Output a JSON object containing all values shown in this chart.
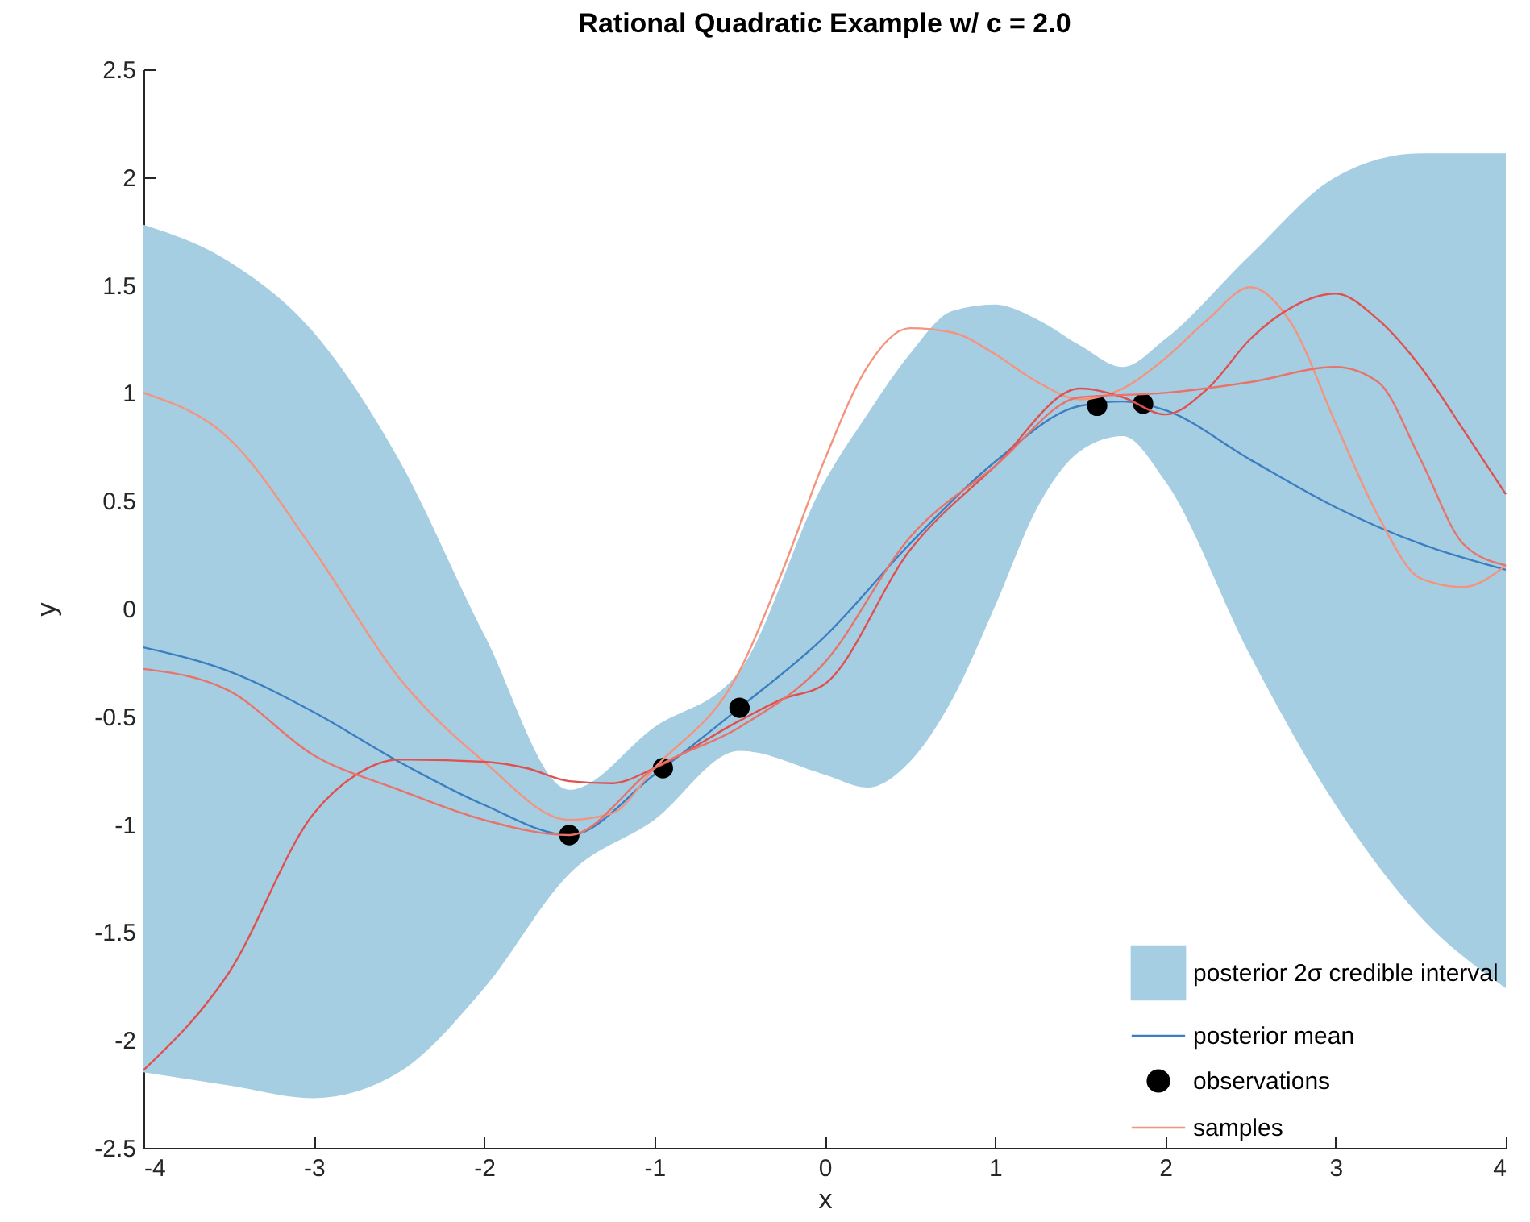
{
  "chart_data": {
    "type": "line",
    "title": "Rational Quadratic Example w/ c = 2.0",
    "xlabel": "x",
    "ylabel": "y",
    "xlim": [
      -4,
      4
    ],
    "xticks": [
      -4,
      -3,
      -2,
      -1,
      0,
      1,
      2,
      3,
      4
    ],
    "ylim": [
      -2.5,
      2.5
    ],
    "yticks": [
      -2.5,
      -2,
      -1.5,
      -1,
      -0.5,
      0,
      0.5,
      1,
      1.5,
      2,
      2.5
    ],
    "grid": false,
    "legend": "bottom right",
    "series": [
      {
        "name": "posterior 2σ credible interval",
        "color": "#a6cee3",
        "x": [
          -4,
          -3.5,
          -3,
          -2.5,
          -2,
          -1.5,
          -1,
          -0.5,
          0,
          0.25,
          0.5,
          0.75,
          1,
          1.25,
          1.5,
          1.75,
          2,
          2.5,
          3,
          3.5,
          4
        ],
        "values": [
          null,
          null,
          null,
          null,
          null,
          null,
          null,
          null,
          null,
          null,
          null,
          null,
          null,
          null,
          null,
          null,
          null,
          null,
          null,
          null,
          null
        ],
        "lower": [
          -2.15,
          -2.21,
          -2.27,
          -2.15,
          -1.76,
          -1.23,
          -0.98,
          -0.66,
          -0.77,
          -0.83,
          -0.71,
          -0.42,
          0.01,
          0.47,
          0.73,
          0.8,
          0.59,
          -0.22,
          -0.91,
          -1.43,
          -1.76
        ],
        "upper": [
          1.78,
          1.61,
          1.28,
          0.69,
          -0.12,
          -0.84,
          -0.55,
          -0.29,
          0.59,
          0.9,
          1.18,
          1.38,
          1.41,
          1.34,
          1.22,
          1.12,
          1.25,
          1.64,
          2.0,
          2.11,
          2.11
        ]
      },
      {
        "name": "posterior mean",
        "color": "#3b7fc0",
        "x": [
          -4,
          -3.5,
          -3,
          -2.5,
          -2,
          -1.5,
          -1,
          -0.5,
          0,
          0.5,
          1,
          1.5,
          1.75,
          2,
          2.5,
          3,
          3.5,
          4
        ],
        "values": [
          -0.18,
          -0.29,
          -0.48,
          -0.71,
          -0.91,
          -1.05,
          -0.77,
          -0.46,
          -0.13,
          0.3,
          0.68,
          0.94,
          0.96,
          0.92,
          0.69,
          0.47,
          0.3,
          0.18
        ]
      },
      {
        "type": "scatter",
        "name": "observations",
        "color": "#000000",
        "x": [
          -1.5,
          -0.95,
          -0.5,
          1.6,
          1.87
        ],
        "values": [
          -1.05,
          -0.74,
          -0.46,
          0.94,
          0.95
        ]
      },
      {
        "name": "samples",
        "color": "#f4937e",
        "x": [
          -4,
          -3.5,
          -3,
          -2.5,
          -2,
          -1.5,
          -1.25,
          -1,
          -0.5,
          -0.25,
          0,
          0.25,
          0.5,
          0.75,
          1,
          1.25,
          1.5,
          1.75,
          2,
          2.25,
          2.5,
          2.75,
          3,
          3.25,
          3.5,
          3.75,
          4
        ],
        "values": [
          1.0,
          0.79,
          0.27,
          -0.32,
          -0.71,
          -0.98,
          -0.95,
          -0.74,
          -0.29,
          0.17,
          0.69,
          1.12,
          1.3,
          1.28,
          1.18,
          1.05,
          0.97,
          1.02,
          1.16,
          1.34,
          1.49,
          1.31,
          0.86,
          0.43,
          0.14,
          0.1,
          0.2
        ]
      },
      {
        "color": "#e0504f",
        "x": [
          -4,
          -3.5,
          -3,
          -2.75,
          -2.5,
          -2,
          -1.75,
          -1.5,
          -1.25,
          -1,
          -0.5,
          -0.25,
          0,
          0.5,
          1,
          1.5,
          1.75,
          2,
          2.25,
          2.5,
          2.75,
          3,
          3.25,
          3.5,
          3.75,
          4
        ],
        "values": [
          -2.14,
          -1.69,
          -0.95,
          -0.77,
          -0.7,
          -0.71,
          -0.74,
          -0.8,
          -0.81,
          -0.74,
          -0.52,
          -0.42,
          -0.35,
          0.27,
          0.66,
          1.02,
          0.98,
          0.9,
          1.02,
          1.25,
          1.4,
          1.46,
          1.34,
          1.12,
          0.83,
          0.53
        ]
      },
      {
        "color": "#e8736a",
        "x": [
          -4,
          -3.5,
          -3,
          -2.5,
          -2,
          -1.5,
          -1,
          -0.5,
          0,
          0.5,
          1,
          1.5,
          2,
          2.5,
          3,
          3.25,
          3.5,
          3.75,
          4
        ],
        "values": [
          -0.28,
          -0.38,
          -0.68,
          -0.84,
          -0.98,
          -1.05,
          -0.74,
          -0.55,
          -0.25,
          0.33,
          0.66,
          0.98,
          1.0,
          1.05,
          1.12,
          1.05,
          0.69,
          0.3,
          0.2
        ]
      }
    ]
  }
}
